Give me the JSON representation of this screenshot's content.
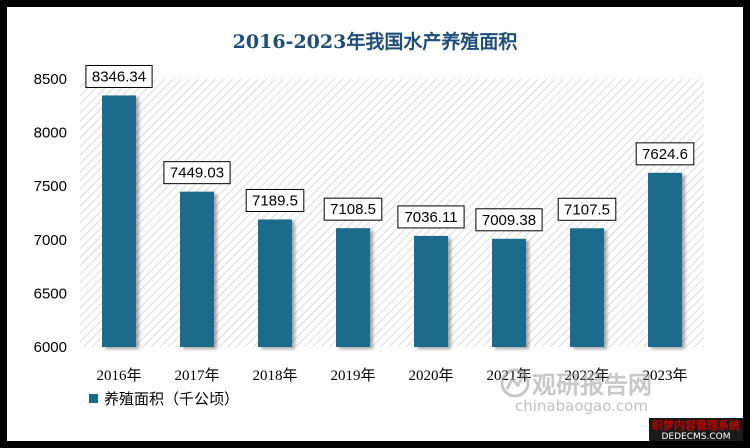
{
  "chart_data": {
    "type": "bar",
    "title": "2016-2023年我国水产养殖面积",
    "categories": [
      "2016年",
      "2017年",
      "2018年",
      "2019年",
      "2020年",
      "2021年",
      "2022年",
      "2023年"
    ],
    "series": [
      {
        "name": "养殖面积（千公顷）",
        "values": [
          8346.34,
          7449.03,
          7189.5,
          7108.5,
          7036.11,
          7009.38,
          7107.5,
          7624.6
        ]
      }
    ],
    "data_labels": [
      "8346.34",
      "7449.03",
      "7189.5",
      "7108.5",
      "7036.11",
      "7009.38",
      "7107.5",
      "7624.6"
    ],
    "ylim": [
      6000,
      8500
    ],
    "yticks": [
      6000,
      6500,
      7000,
      7500,
      8000,
      8500
    ],
    "bar_color": "#1b6a8c",
    "grid": false,
    "legend_position": "bottom-left",
    "xlabel": "",
    "ylabel": ""
  },
  "watermark": {
    "brand": "观研报告网",
    "site": "chinabaogao.com"
  },
  "corner_badge": {
    "line1": "织梦内容管理系统",
    "line2": "DEDECMS.COM"
  }
}
